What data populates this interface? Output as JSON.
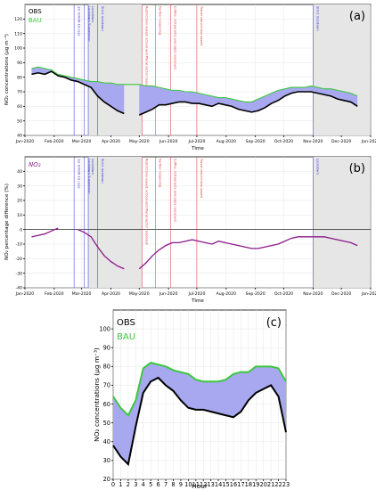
{
  "chart_data": [
    {
      "panel": "(a)",
      "type": "line",
      "xlabel": "Time",
      "ylabel": "NO₂ concentrations (µg m⁻³)",
      "ylim": [
        40,
        130
      ],
      "xlim": [
        "2020-01-01",
        "2021-01-01"
      ],
      "yticks": [
        40,
        50,
        60,
        70,
        80,
        90,
        100,
        110,
        120
      ],
      "xticks": [
        "Jan-2020",
        "Feb-2020",
        "Mar-2020",
        "Apr-2020",
        "May-2020",
        "Jun-2020",
        "Jul-2020",
        "Aug-2020",
        "Sep-2020",
        "Oct-2020",
        "Nov-2020",
        "Dec-2020",
        "Jan-2021"
      ],
      "grid": true,
      "legend_position": "top-left",
      "series": [
        {
          "name": "OBS",
          "color": "#000000",
          "x": [
            "2020-01-08",
            "2020-01-15",
            "2020-01-22",
            "2020-01-29",
            "2020-02-05",
            "2020-02-12",
            "2020-02-19",
            "2020-02-26",
            "2020-03-04",
            "2020-03-11",
            "2020-03-18",
            "2020-03-25",
            "2020-04-01",
            "2020-04-08",
            "2020-04-15",
            null,
            "2020-05-01",
            "2020-05-08",
            "2020-05-15",
            "2020-05-22",
            "2020-05-29",
            "2020-06-05",
            "2020-06-12",
            "2020-06-19",
            "2020-06-26",
            "2020-07-03",
            "2020-07-10",
            "2020-07-17",
            "2020-07-24",
            "2020-07-31",
            "2020-08-07",
            "2020-08-14",
            "2020-08-21",
            "2020-08-28",
            "2020-09-04",
            "2020-09-11",
            "2020-09-18",
            "2020-09-25",
            "2020-10-02",
            "2020-10-09",
            "2020-10-16",
            "2020-10-23",
            "2020-10-30",
            "2020-11-06",
            "2020-11-13",
            "2020-11-20",
            "2020-11-27",
            "2020-12-04",
            "2020-12-11",
            "2020-12-18"
          ],
          "y": [
            82,
            83,
            82,
            84,
            81,
            80,
            78,
            77,
            75,
            73,
            67,
            63,
            60,
            57,
            55,
            null,
            54,
            56,
            58,
            61,
            61,
            62,
            63,
            63,
            62,
            62,
            61,
            60,
            62,
            61,
            60,
            58,
            57,
            56,
            57,
            59,
            62,
            64,
            67,
            69,
            70,
            70,
            70,
            69,
            68,
            67,
            65,
            64,
            63,
            60
          ]
        },
        {
          "name": "BAU",
          "color": "#3cc83c",
          "x": [
            "2020-01-08",
            "2020-01-15",
            "2020-01-22",
            "2020-01-29",
            "2020-02-05",
            "2020-02-12",
            "2020-02-19",
            "2020-02-26",
            "2020-03-04",
            "2020-03-11",
            "2020-03-18",
            "2020-03-25",
            "2020-04-01",
            "2020-04-08",
            "2020-04-15",
            "2020-04-22",
            "2020-05-01",
            "2020-05-08",
            "2020-05-15",
            "2020-05-22",
            "2020-05-29",
            "2020-06-05",
            "2020-06-12",
            "2020-06-19",
            "2020-06-26",
            "2020-07-03",
            "2020-07-10",
            "2020-07-17",
            "2020-07-24",
            "2020-07-31",
            "2020-08-07",
            "2020-08-14",
            "2020-08-21",
            "2020-08-28",
            "2020-09-04",
            "2020-09-11",
            "2020-09-18",
            "2020-09-25",
            "2020-10-02",
            "2020-10-09",
            "2020-10-16",
            "2020-10-23",
            "2020-10-30",
            "2020-11-06",
            "2020-11-13",
            "2020-11-20",
            "2020-11-27",
            "2020-12-04",
            "2020-12-11",
            "2020-12-18"
          ],
          "y": [
            86,
            87,
            86,
            85,
            82,
            81,
            80,
            79,
            78,
            77,
            77,
            76,
            76,
            75,
            75,
            75,
            75,
            74,
            74,
            73,
            72,
            71,
            71,
            70,
            70,
            69,
            68,
            67,
            66,
            66,
            65,
            64,
            63,
            63,
            65,
            67,
            69,
            71,
            72,
            73,
            73,
            73,
            74,
            73,
            72,
            72,
            71,
            70,
            69,
            67
          ]
        }
      ],
      "events": [
        {
          "date": "2020-02-22",
          "label": "1st COVID-19 case",
          "color": "#3030d0"
        },
        {
          "date": "2020-03-04",
          "label": "Lockdown Suspension",
          "color": "#3030d0"
        },
        {
          "date": "2020-03-08",
          "label": "Lockdown",
          "color": "#3030d0"
        },
        {
          "date": "2020-03-18",
          "label": "Strict lockdown",
          "color": "#3030d0"
        },
        {
          "date": "2020-05-04",
          "label": "Restrictions eased, school and Plural sector reopened",
          "color": "#e03030"
        },
        {
          "date": "2020-05-18",
          "label": "Further reopening",
          "color": "#e03030"
        },
        {
          "date": "2020-06-03",
          "label": "Coffee, restaurants and pubs reopened",
          "color": "#e03030"
        },
        {
          "date": "2020-07-01",
          "label": "Travel restrictions eased",
          "color": "#e03030"
        },
        {
          "date": "2020-11-01",
          "label": "Strict lockdown",
          "color": "#3030d0"
        }
      ],
      "shaded_periods": [
        [
          "2020-03-08",
          "2020-05-04"
        ],
        [
          "2020-11-01",
          "2020-12-31"
        ]
      ],
      "fill_between": "BAU and OBS"
    },
    {
      "panel": "(b)",
      "type": "line",
      "xlabel": "Time",
      "ylabel": "NO₂ percentage difference (%)",
      "ylim": [
        -40,
        50
      ],
      "xlim": [
        "2020-01-01",
        "2021-01-01"
      ],
      "yticks": [
        -40,
        -30,
        -20,
        -10,
        0,
        10,
        20,
        30,
        40
      ],
      "xticks": [
        "Jan-2020",
        "Feb-2020",
        "Mar-2020",
        "Apr-2020",
        "May-2020",
        "Jun-2020",
        "Jul-2020",
        "Aug-2020",
        "Sep-2020",
        "Oct-2020",
        "Nov-2020",
        "Dec-2020",
        "Jan-2021"
      ],
      "grid": true,
      "legend_position": "top-left",
      "series": [
        {
          "name": "NO₂",
          "color": "#8a1a8a",
          "x": [
            "2020-01-08",
            "2020-01-15",
            "2020-01-22",
            "2020-01-29",
            "2020-02-05",
            null,
            "2020-02-26",
            "2020-03-04",
            "2020-03-11",
            "2020-03-18",
            "2020-03-25",
            "2020-04-01",
            "2020-04-08",
            "2020-04-15",
            null,
            "2020-05-01",
            "2020-05-08",
            "2020-05-15",
            "2020-05-22",
            "2020-05-29",
            "2020-06-05",
            "2020-06-12",
            "2020-06-19",
            "2020-06-26",
            "2020-07-03",
            "2020-07-10",
            "2020-07-17",
            "2020-07-24",
            "2020-07-31",
            "2020-08-07",
            "2020-08-14",
            "2020-08-21",
            "2020-08-28",
            "2020-09-04",
            "2020-09-11",
            "2020-09-18",
            "2020-09-25",
            "2020-10-02",
            "2020-10-09",
            "2020-10-16",
            "2020-10-23",
            "2020-10-30",
            "2020-11-06",
            "2020-11-13",
            "2020-11-20",
            "2020-11-27",
            "2020-12-04",
            "2020-12-11",
            "2020-12-18"
          ],
          "y": [
            -5,
            -4,
            -3,
            -1,
            1,
            null,
            0,
            -2,
            -5,
            -12,
            -18,
            -22,
            -25,
            -27,
            null,
            -27,
            -23,
            -18,
            -14,
            -11,
            -9,
            -9,
            -8,
            -7,
            -8,
            -9,
            -10,
            -8,
            -9,
            -10,
            -11,
            -12,
            -13,
            -13,
            -12,
            -11,
            -10,
            -8,
            -6,
            -5,
            -5,
            -5,
            -5,
            -5,
            -6,
            -7,
            -8,
            -9,
            -11
          ]
        }
      ],
      "events": [
        {
          "date": "2020-02-22",
          "label": "1st COVID-19 case",
          "color": "#3030d0"
        },
        {
          "date": "2020-03-04",
          "label": "Lockdown Suspension",
          "color": "#3030d0"
        },
        {
          "date": "2020-03-08",
          "label": "Lockdown",
          "color": "#3030d0"
        },
        {
          "date": "2020-03-18",
          "label": "Strict lockdown",
          "color": "#3030d0"
        },
        {
          "date": "2020-05-04",
          "label": "Restrictions eased, school and Plural sector reopened",
          "color": "#e03030"
        },
        {
          "date": "2020-05-18",
          "label": "Further reopening",
          "color": "#e03030"
        },
        {
          "date": "2020-06-03",
          "label": "Coffee, restaurants and pubs reopened",
          "color": "#e03030"
        },
        {
          "date": "2020-07-01",
          "label": "Travel restrictions eased",
          "color": "#e03030"
        },
        {
          "date": "2020-11-01",
          "label": "Lockdown",
          "color": "#3030d0"
        }
      ],
      "shaded_periods": [
        [
          "2020-03-08",
          "2020-05-04"
        ],
        [
          "2020-11-01",
          "2020-12-31"
        ]
      ],
      "reference_line": 0
    },
    {
      "panel": "(c)",
      "type": "line",
      "xlabel": "Hour",
      "ylabel": "NO₂ concentrations (µg m⁻³)",
      "ylim": [
        20,
        110
      ],
      "xlim": [
        0,
        23
      ],
      "yticks": [
        20,
        30,
        40,
        50,
        60,
        70,
        80,
        90,
        100
      ],
      "grid": true,
      "legend_position": "top-left",
      "x": [
        0,
        1,
        2,
        3,
        4,
        5,
        6,
        7,
        8,
        9,
        10,
        11,
        12,
        13,
        14,
        15,
        16,
        17,
        18,
        19,
        20,
        21,
        22,
        23
      ],
      "series": [
        {
          "name": "OBS",
          "color": "#000000",
          "values": [
            38,
            32,
            28,
            48,
            66,
            72,
            74,
            70,
            67,
            62,
            58,
            57,
            57,
            56,
            55,
            54,
            53,
            56,
            62,
            66,
            68,
            70,
            64,
            45
          ]
        },
        {
          "name": "BAU",
          "color": "#3cc83c",
          "values": [
            64,
            58,
            54,
            62,
            79,
            82,
            81,
            80,
            78,
            77,
            76,
            73,
            72,
            72,
            72,
            73,
            76,
            77,
            77,
            80,
            80,
            80,
            79,
            72
          ]
        }
      ],
      "fill_between": "BAU and OBS"
    }
  ],
  "panel_labels": {
    "a": "(a)",
    "b": "(b)",
    "c": "(c)"
  },
  "legend": {
    "obs": "OBS",
    "bau": "BAU",
    "no2": "NO₂"
  },
  "colors": {
    "obs": "#000000",
    "bau": "#3cc83c",
    "no2": "#8a1a8a",
    "fill": "#a8a8f0",
    "shade": "#e6e6e6"
  }
}
